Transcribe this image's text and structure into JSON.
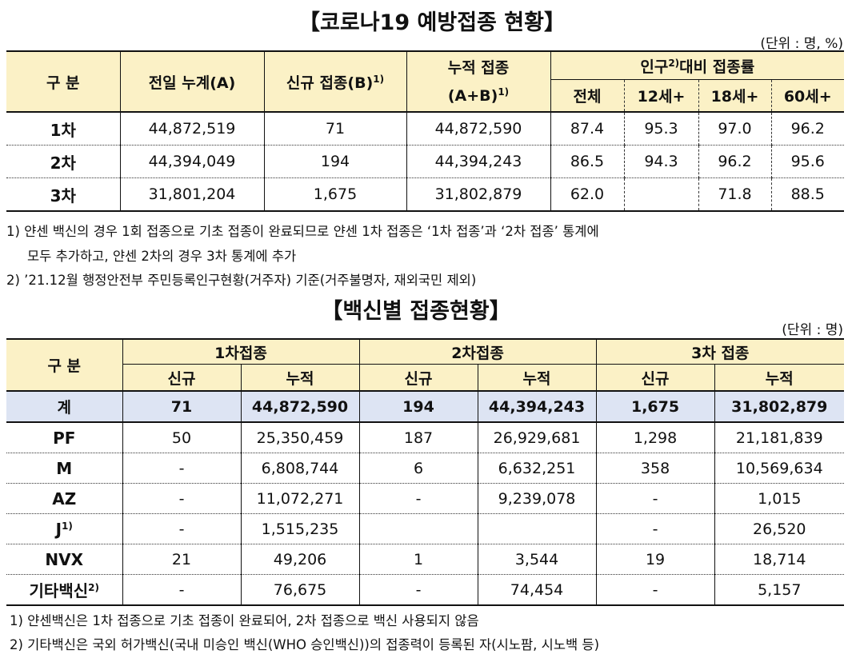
{
  "section1": {
    "title": "【코로나19 예방접종 현황】",
    "unit": "(단위 : 명, %)",
    "headers": {
      "gubun": "구 분",
      "prev": "전일 누계(A)",
      "new_prefix": "신규 접종(B)",
      "new_sup": "1)",
      "cum_line1": "누적 접종",
      "cum_line2": "(A+B)",
      "cum_sup": "1)",
      "rate_prefix": "인구",
      "rate_sup": "2)",
      "rate_suffix": "대비 접종률",
      "all": "전체",
      "age12": "12세+",
      "age18": "18세+",
      "age60": "60세+"
    },
    "rows": [
      {
        "label": "1차",
        "prev": "44,872,519",
        "new": "71",
        "cum": "44,872,590",
        "all": "87.4",
        "age12": "95.3",
        "age18": "97.0",
        "age60": "96.2"
      },
      {
        "label": "2차",
        "prev": "44,394,049",
        "new": "194",
        "cum": "44,394,243",
        "all": "86.5",
        "age12": "94.3",
        "age18": "96.2",
        "age60": "95.6"
      },
      {
        "label": "3차",
        "prev": "31,801,204",
        "new": "1,675",
        "cum": "31,802,879",
        "all": "62.0",
        "age12": "",
        "age18": "71.8",
        "age60": "88.5"
      }
    ],
    "notes": [
      "1) 얀센 백신의 경우 1회 접종으로 기초 접종이 완료되므로 얀센 1차 접종은 ‘1차 접종’과 ‘2차 접종’ 통계에",
      "모두 추가하고, 얀센 2차의 경우 3차 통계에 추가",
      "2) ’21.12월 행정안전부 주민등록인구현황(거주자) 기준(거주불명자, 재외국민 제외)"
    ]
  },
  "section2": {
    "title": "【백신별 접종현황】",
    "unit": "(단위 : 명)",
    "headers": {
      "gubun": "구 분",
      "dose1": "1차접종",
      "dose2": "2차접종",
      "dose3": "3차 접종",
      "new": "신규",
      "cum": "누적"
    },
    "total": {
      "label": "계",
      "d1_new": "71",
      "d1_cum": "44,872,590",
      "d2_new": "194",
      "d2_cum": "44,394,243",
      "d3_new": "1,675",
      "d3_cum": "31,802,879"
    },
    "rows": [
      {
        "label": "PF",
        "sup": "",
        "d1_new": "50",
        "d1_cum": "25,350,459",
        "d2_new": "187",
        "d2_cum": "26,929,681",
        "d3_new": "1,298",
        "d3_cum": "21,181,839"
      },
      {
        "label": "M",
        "sup": "",
        "d1_new": "-",
        "d1_cum": "6,808,744",
        "d2_new": "6",
        "d2_cum": "6,632,251",
        "d3_new": "358",
        "d3_cum": "10,569,634"
      },
      {
        "label": "AZ",
        "sup": "",
        "d1_new": "-",
        "d1_cum": "11,072,271",
        "d2_new": "-",
        "d2_cum": "9,239,078",
        "d3_new": "-",
        "d3_cum": "1,015"
      },
      {
        "label": "J",
        "sup": "1)",
        "d1_new": "-",
        "d1_cum": "1,515,235",
        "d2_new": "",
        "d2_cum": "",
        "d3_new": "-",
        "d3_cum": "26,520"
      },
      {
        "label": "NVX",
        "sup": "",
        "d1_new": "21",
        "d1_cum": "49,206",
        "d2_new": "1",
        "d2_cum": "3,544",
        "d3_new": "19",
        "d3_cum": "18,714"
      },
      {
        "label": "기타백신",
        "sup": "2)",
        "d1_new": "-",
        "d1_cum": "76,675",
        "d2_new": "-",
        "d2_cum": "74,454",
        "d3_new": "-",
        "d3_cum": "5,157"
      }
    ],
    "notes": [
      "1) 얀센백신은 1차 접종으로 기초 접종이 완료되어, 2차 접종으로 백신 사용되지 않음",
      "2) 기타백신은 국외 허가백신(국내 미승인 백신(WHO 승인백신))의 접종력이 등록된 자(시노팜, 시노백 등)"
    ]
  }
}
